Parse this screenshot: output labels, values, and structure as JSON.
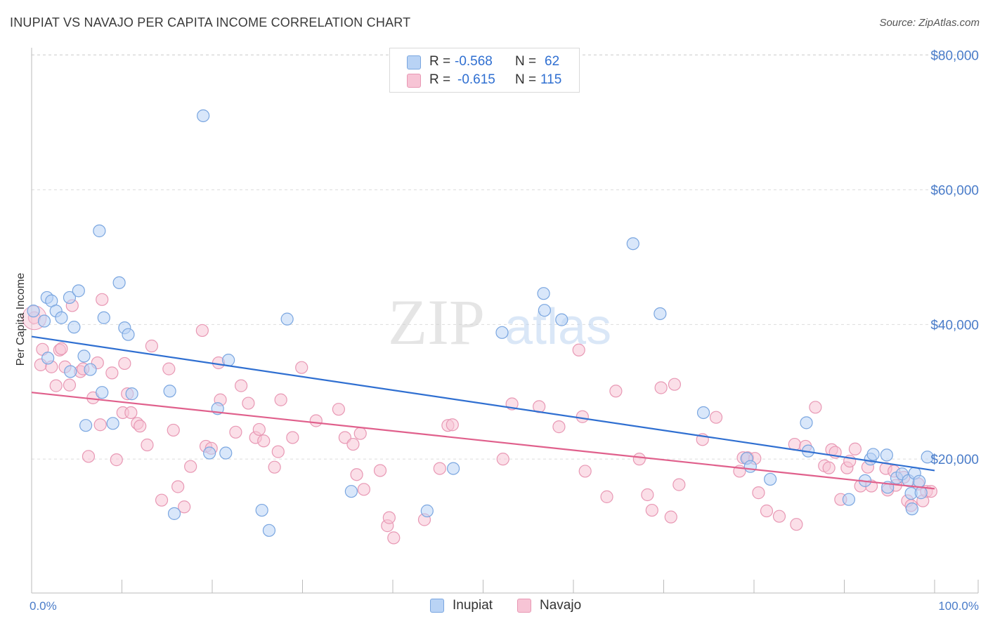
{
  "title": "INUPIAT VS NAVAJO PER CAPITA INCOME CORRELATION CHART",
  "source": "Source: ZipAtlas.com",
  "watermark": {
    "part1": "ZIP",
    "part2": "atlas"
  },
  "stats": {
    "row1": {
      "r_label": "R =",
      "r_value": "-0.568",
      "n_label": "N =",
      "n_value": "62"
    },
    "row2": {
      "r_label": "R =",
      "r_value": "-0.615",
      "n_label": "N =",
      "n_value": "115"
    }
  },
  "legend": {
    "inupiat": "Inupiat",
    "navajo": "Navajo"
  },
  "colors": {
    "inupiat_fill": "#b9d3f5",
    "inupiat_stroke": "#7aa6e0",
    "inupiat_line": "#2f6fd1",
    "navajo_fill": "#f7c4d5",
    "navajo_stroke": "#e898b4",
    "navajo_line": "#e0608c",
    "tick_text": "#4a7cc9"
  },
  "chart_data": {
    "type": "scatter",
    "title": "INUPIAT VS NAVAJO PER CAPITA INCOME CORRELATION CHART",
    "xlabel": "",
    "ylabel": "Per Capita Income",
    "xlim": [
      0,
      100
    ],
    "ylim": [
      0,
      80000
    ],
    "x_tick_labels": [
      "0.0%",
      "100.0%"
    ],
    "y_ticks": [
      20000,
      40000,
      60000,
      80000
    ],
    "y_tick_labels": [
      "$20,000",
      "$40,000",
      "$60,000",
      "$80,000"
    ],
    "series": [
      {
        "name": "Inupiat",
        "r": -0.568,
        "n": 62,
        "trend": {
          "y_at_0": 38200,
          "y_at_100": 18300
        },
        "points": [
          [
            0.2,
            42000
          ],
          [
            1.4,
            40500
          ],
          [
            1.8,
            35000
          ],
          [
            1.7,
            44000
          ],
          [
            2.2,
            43500
          ],
          [
            2.7,
            42000
          ],
          [
            3.3,
            41000
          ],
          [
            4.2,
            44000
          ],
          [
            4.3,
            33000
          ],
          [
            4.7,
            39600
          ],
          [
            5.2,
            45000
          ],
          [
            5.8,
            35300
          ],
          [
            6.0,
            25000
          ],
          [
            6.5,
            33300
          ],
          [
            7.8,
            29900
          ],
          [
            7.5,
            53900
          ],
          [
            8.0,
            41000
          ],
          [
            9.0,
            25300
          ],
          [
            9.7,
            46200
          ],
          [
            10.3,
            39500
          ],
          [
            10.7,
            38500
          ],
          [
            11.1,
            29700
          ],
          [
            15.3,
            30100
          ],
          [
            15.8,
            11900
          ],
          [
            19.0,
            71000
          ],
          [
            19.7,
            20900
          ],
          [
            20.6,
            27500
          ],
          [
            21.5,
            20900
          ],
          [
            21.8,
            34700
          ],
          [
            25.5,
            12400
          ],
          [
            26.3,
            9400
          ],
          [
            28.3,
            40800
          ],
          [
            35.4,
            15200
          ],
          [
            43.8,
            12300
          ],
          [
            46.7,
            18600
          ],
          [
            52.1,
            38800
          ],
          [
            56.7,
            44600
          ],
          [
            56.8,
            42100
          ],
          [
            58.7,
            40700
          ],
          [
            66.6,
            52000
          ],
          [
            69.6,
            41600
          ],
          [
            74.4,
            26900
          ],
          [
            79.2,
            20100
          ],
          [
            79.6,
            18900
          ],
          [
            81.8,
            17000
          ],
          [
            85.8,
            25400
          ],
          [
            86.0,
            21200
          ],
          [
            90.5,
            14000
          ],
          [
            92.3,
            16800
          ],
          [
            92.9,
            20000
          ],
          [
            93.2,
            20700
          ],
          [
            94.7,
            20600
          ],
          [
            94.8,
            15800
          ],
          [
            95.8,
            17200
          ],
          [
            96.4,
            17800
          ],
          [
            97.1,
            16800
          ],
          [
            97.4,
            14900
          ],
          [
            97.8,
            17900
          ],
          [
            98.5,
            15000
          ],
          [
            97.5,
            12600
          ],
          [
            98.3,
            16700
          ],
          [
            99.2,
            20300
          ]
        ]
      },
      {
        "name": "Navajo",
        "r": -0.615,
        "n": 115,
        "trend": {
          "y_at_0": 29900,
          "y_at_100": 15600
        },
        "points": [
          [
            0.3,
            41000
          ],
          [
            1.0,
            34000
          ],
          [
            1.2,
            36300
          ],
          [
            2.2,
            33700
          ],
          [
            2.7,
            30900
          ],
          [
            3.1,
            36200
          ],
          [
            3.3,
            36400
          ],
          [
            3.7,
            33700
          ],
          [
            4.2,
            31000
          ],
          [
            4.5,
            42800
          ],
          [
            5.4,
            33000
          ],
          [
            5.7,
            33400
          ],
          [
            6.3,
            20400
          ],
          [
            6.8,
            29100
          ],
          [
            7.3,
            34300
          ],
          [
            7.6,
            25100
          ],
          [
            7.8,
            43700
          ],
          [
            8.9,
            32800
          ],
          [
            9.4,
            19900
          ],
          [
            10.1,
            26900
          ],
          [
            10.3,
            34200
          ],
          [
            10.6,
            29700
          ],
          [
            11.0,
            26900
          ],
          [
            11.7,
            25300
          ],
          [
            12.0,
            24900
          ],
          [
            12.8,
            22100
          ],
          [
            13.3,
            36800
          ],
          [
            14.4,
            13900
          ],
          [
            15.2,
            33400
          ],
          [
            15.7,
            24300
          ],
          [
            16.2,
            15900
          ],
          [
            16.9,
            12900
          ],
          [
            17.6,
            18900
          ],
          [
            18.9,
            39100
          ],
          [
            19.3,
            21900
          ],
          [
            19.9,
            21600
          ],
          [
            20.7,
            34300
          ],
          [
            20.9,
            28800
          ],
          [
            22.6,
            24000
          ],
          [
            23.2,
            30900
          ],
          [
            24.0,
            28300
          ],
          [
            24.8,
            23200
          ],
          [
            25.2,
            24400
          ],
          [
            25.7,
            22700
          ],
          [
            26.9,
            18800
          ],
          [
            27.3,
            21100
          ],
          [
            27.6,
            28800
          ],
          [
            28.9,
            23200
          ],
          [
            29.9,
            33600
          ],
          [
            31.5,
            25700
          ],
          [
            34.0,
            27400
          ],
          [
            34.7,
            23200
          ],
          [
            35.6,
            22200
          ],
          [
            36.0,
            17700
          ],
          [
            36.4,
            23800
          ],
          [
            36.8,
            15500
          ],
          [
            38.6,
            18300
          ],
          [
            39.4,
            10100
          ],
          [
            39.6,
            11300
          ],
          [
            40.1,
            8300
          ],
          [
            43.5,
            11000
          ],
          [
            45.2,
            18600
          ],
          [
            46.1,
            25000
          ],
          [
            46.6,
            25100
          ],
          [
            52.2,
            20000
          ],
          [
            53.2,
            28200
          ],
          [
            56.2,
            27800
          ],
          [
            58.4,
            24800
          ],
          [
            60.6,
            36200
          ],
          [
            61.0,
            26300
          ],
          [
            61.3,
            18200
          ],
          [
            63.7,
            14400
          ],
          [
            64.7,
            30100
          ],
          [
            67.3,
            20000
          ],
          [
            68.2,
            14700
          ],
          [
            68.7,
            12400
          ],
          [
            69.7,
            30600
          ],
          [
            70.8,
            11400
          ],
          [
            71.2,
            31100
          ],
          [
            71.7,
            16200
          ],
          [
            74.3,
            22900
          ],
          [
            75.8,
            26200
          ],
          [
            78.4,
            18200
          ],
          [
            78.8,
            20200
          ],
          [
            79.3,
            20200
          ],
          [
            80.1,
            20100
          ],
          [
            80.5,
            15000
          ],
          [
            81.4,
            12300
          ],
          [
            82.8,
            11500
          ],
          [
            84.5,
            22200
          ],
          [
            84.7,
            10300
          ],
          [
            85.7,
            21900
          ],
          [
            86.8,
            27700
          ],
          [
            87.8,
            19000
          ],
          [
            88.3,
            18700
          ],
          [
            88.6,
            21400
          ],
          [
            89.0,
            21000
          ],
          [
            89.6,
            14000
          ],
          [
            90.3,
            18700
          ],
          [
            90.6,
            19700
          ],
          [
            91.2,
            21500
          ],
          [
            91.8,
            16000
          ],
          [
            92.6,
            18800
          ],
          [
            93.0,
            16000
          ],
          [
            94.6,
            18600
          ],
          [
            94.8,
            15400
          ],
          [
            95.5,
            18200
          ],
          [
            95.7,
            16100
          ],
          [
            96.6,
            17300
          ],
          [
            97.0,
            13800
          ],
          [
            97.4,
            13100
          ],
          [
            98.2,
            16300
          ],
          [
            98.7,
            13800
          ],
          [
            99.1,
            15200
          ],
          [
            99.6,
            15200
          ]
        ]
      }
    ]
  }
}
